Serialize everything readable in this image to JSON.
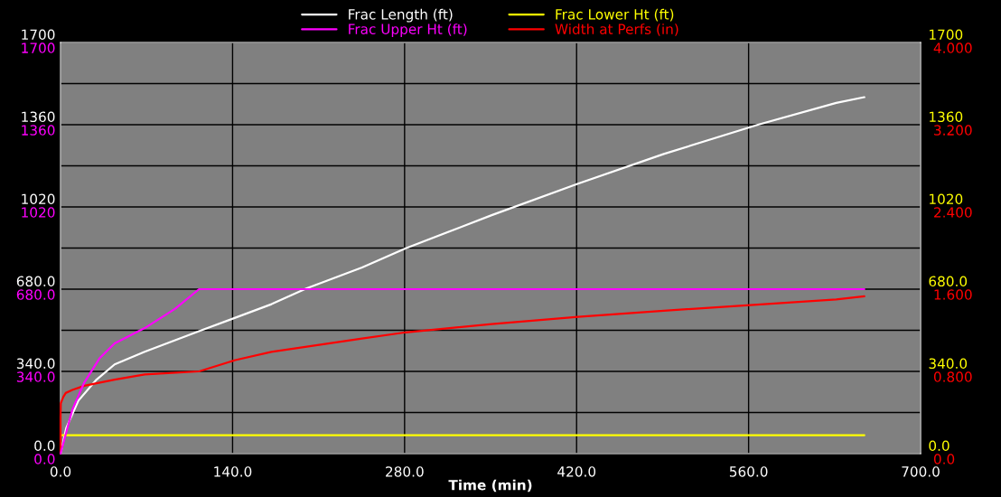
{
  "chart_data": {
    "type": "line",
    "xlabel": "Time (min)",
    "xlim": [
      0,
      700
    ],
    "xticks": [
      {
        "value": 0,
        "label": "0.0"
      },
      {
        "value": 140,
        "label": "140.0"
      },
      {
        "value": 280,
        "label": "280.0"
      },
      {
        "value": 420,
        "label": "420.0"
      },
      {
        "value": 560,
        "label": "560.0"
      },
      {
        "value": 700,
        "label": "700.0"
      }
    ],
    "ylim": [
      0,
      1700
    ],
    "yticks": [
      {
        "value": 0,
        "label": "0.0"
      },
      {
        "value": 170,
        "label": null
      },
      {
        "value": 340,
        "label": "340.0"
      },
      {
        "value": 510,
        "label": null
      },
      {
        "value": 680,
        "label": "680.0"
      },
      {
        "value": 850,
        "label": null
      },
      {
        "value": 1020,
        "label": "1020"
      },
      {
        "value": 1190,
        "label": null
      },
      {
        "value": 1360,
        "label": "1360"
      },
      {
        "value": 1530,
        "label": null
      },
      {
        "value": 1700,
        "label": "1700"
      }
    ],
    "y2lim": [
      0,
      4
    ],
    "y2ticks": [
      {
        "value": 0,
        "label": "0.0"
      },
      {
        "value": 0.8,
        "label": "0.800"
      },
      {
        "value": 1.6,
        "label": "1.600"
      },
      {
        "value": 2.4,
        "label": "2.400"
      },
      {
        "value": 3.2,
        "label": "3.200"
      },
      {
        "value": 4,
        "label": "4.000"
      }
    ],
    "y3lim": [
      0,
      1700
    ],
    "y3ticks": [
      {
        "value": 0,
        "label": "0.0"
      },
      {
        "value": 340,
        "label": "340.0"
      },
      {
        "value": 680,
        "label": "680.0"
      },
      {
        "value": 1020,
        "label": "1020"
      },
      {
        "value": 1360,
        "label": "1360"
      },
      {
        "value": 1700,
        "label": "1700"
      }
    ],
    "grid": true,
    "legend": "top",
    "marker": "none",
    "line_style": "solid",
    "series": [
      {
        "name": "Frac Length (ft)",
        "color": "#ffffff",
        "axis": "y",
        "x": [
          0,
          4.7,
          14.5,
          29.3,
          44,
          68.5,
          112.7,
          171.7,
          200,
          245.4,
          281,
          350.9,
          421.2,
          491,
          568.3,
          631.3,
          654.2
        ],
        "values": [
          0,
          107,
          219,
          306,
          369,
          421,
          506,
          618,
          683,
          770,
          849,
          986,
          1116,
          1239,
          1361,
          1450,
          1474
        ]
      },
      {
        "name": "Frac Upper Ht (ft)",
        "color": "#ff00ff",
        "axis": "y3",
        "x": [
          0,
          9.6,
          19.4,
          31.7,
          44,
          68.5,
          93.3,
          112.7,
          654.2
        ],
        "values": [
          0,
          182,
          295,
          394,
          456,
          519,
          599,
          680,
          680
        ]
      },
      {
        "name": "Frac Lower Ht (ft)",
        "color": "#ffff00",
        "axis": "y",
        "x": [
          0,
          654.2
        ],
        "values": [
          76,
          76
        ]
      },
      {
        "name": "Width at Perfs (in)",
        "color": "#ff0000",
        "axis": "y2",
        "x": [
          0,
          0,
          0.2,
          2.2,
          4.2,
          9.6,
          19.4,
          44,
          68.5,
          112.7,
          142.2,
          171.7,
          245.4,
          281,
          350.9,
          421.2,
          491,
          631.3,
          654.2
        ],
        "values": [
          0,
          0.35,
          0.49,
          0.55,
          0.59,
          0.62,
          0.66,
          0.72,
          0.77,
          0.8,
          0.91,
          0.99,
          1.12,
          1.18,
          1.26,
          1.33,
          1.39,
          1.5,
          1.53
        ]
      }
    ]
  }
}
